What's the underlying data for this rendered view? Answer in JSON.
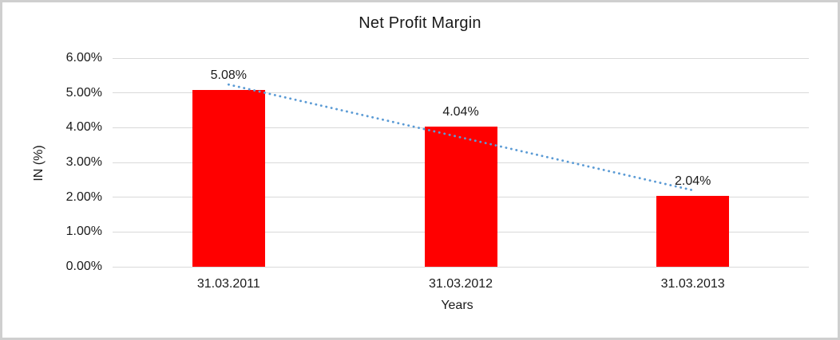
{
  "chart_data": {
    "type": "bar",
    "title": "Net Profit Margin",
    "xlabel": "Years",
    "ylabel": "IN (%)",
    "categories": [
      "31.03.2011",
      "31.03.2012",
      "31.03.2013"
    ],
    "values": [
      5.08,
      4.04,
      2.04
    ],
    "data_labels": [
      "5.08%",
      "4.04%",
      "2.04%"
    ],
    "ylim": [
      0,
      6
    ],
    "ytick_step": 1,
    "ytick_labels": [
      "0.00%",
      "1.00%",
      "2.00%",
      "3.00%",
      "4.00%",
      "5.00%",
      "6.00%"
    ],
    "grid": true,
    "legend": "none",
    "bar_color": "#ff0000",
    "gridline_color": "#d9d9d9",
    "text_color": "#1a1a1a",
    "trendline": {
      "type": "linear",
      "style": "dotted",
      "color": "#5b9bd5"
    }
  }
}
